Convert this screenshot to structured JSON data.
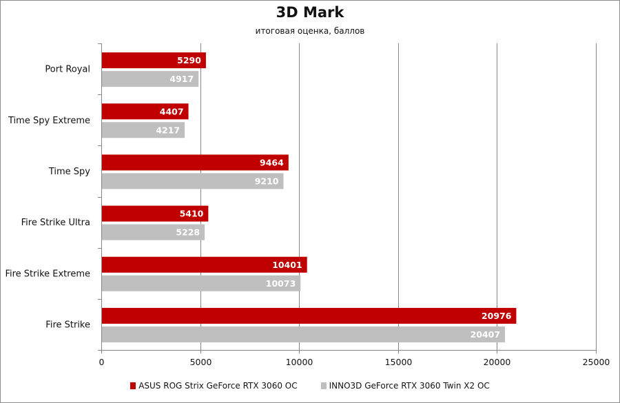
{
  "chart_data": {
    "type": "bar",
    "orientation": "horizontal",
    "title": "3D Mark",
    "subtitle": "итоговая оценка, баллов",
    "categories": [
      "Port Royal",
      "Time Spy Extreme",
      "Time Spy",
      "Fire Strike Ultra",
      "Fire Strike Extreme",
      "Fire Strike"
    ],
    "series": [
      {
        "name": "ASUS ROG Strix GeForce RTX 3060 OC",
        "color": "#c00000",
        "values": [
          5290,
          4407,
          9464,
          5410,
          10401,
          20976
        ]
      },
      {
        "name": "INNO3D GeForce RTX 3060 Twin X2 OC",
        "color": "#bfbfbf",
        "values": [
          4917,
          4217,
          9210,
          5228,
          10073,
          20407
        ]
      }
    ],
    "xlim": [
      0,
      25000
    ],
    "xticks": [
      "0",
      "5000",
      "10000",
      "15000",
      "20000",
      "25000"
    ],
    "grid": true,
    "legend_position": "bottom"
  }
}
